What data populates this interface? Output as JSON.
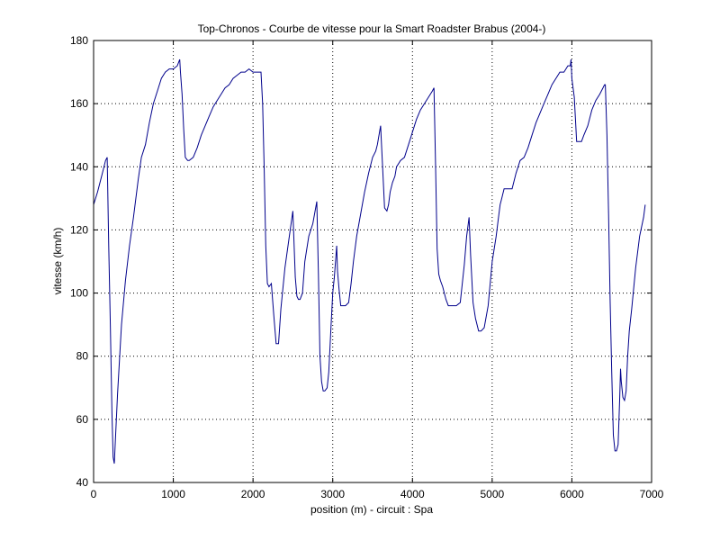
{
  "chart_data": {
    "type": "line",
    "title": "Top-Chronos - Courbe de vitesse pour la Smart Roadster Brabus (2004-)",
    "xlabel": "position (m) - circuit : Spa",
    "ylabel": "vitesse (km/h)",
    "xlim": [
      0,
      7000
    ],
    "ylim": [
      40,
      180
    ],
    "x_ticks": [
      0,
      1000,
      2000,
      3000,
      4000,
      5000,
      6000,
      7000
    ],
    "y_ticks": [
      40,
      60,
      80,
      100,
      120,
      140,
      160,
      180
    ],
    "grid": true,
    "line_color": "#00008b",
    "series": [
      {
        "x": [
          0,
          50,
          100,
          150,
          170,
          190,
          210,
          230,
          245,
          260,
          300,
          350,
          400,
          450,
          500,
          560,
          600,
          650,
          700,
          750,
          800,
          850,
          900,
          950,
          1000,
          1050,
          1080,
          1090,
          1110,
          1130,
          1150,
          1180,
          1200,
          1250,
          1300,
          1350,
          1400,
          1450,
          1500,
          1550,
          1600,
          1650,
          1700,
          1750,
          1800,
          1850,
          1900,
          1950,
          2000,
          2040,
          2060,
          2080,
          2100,
          2120,
          2140,
          2160,
          2180,
          2200,
          2230,
          2260,
          2290,
          2320,
          2350,
          2400,
          2450,
          2500,
          2530,
          2550,
          2570,
          2590,
          2620,
          2650,
          2700,
          2750,
          2800,
          2820,
          2840,
          2860,
          2880,
          2900,
          2930,
          2950,
          2980,
          3000,
          3020,
          3050,
          3060,
          3080,
          3100,
          3130,
          3160,
          3200,
          3230,
          3260,
          3300,
          3350,
          3400,
          3450,
          3500,
          3540,
          3560,
          3580,
          3600,
          3620,
          3650,
          3680,
          3700,
          3720,
          3750,
          3780,
          3800,
          3850,
          3900,
          3950,
          4000,
          4050,
          4100,
          4150,
          4200,
          4250,
          4270,
          4290,
          4310,
          4330,
          4350,
          4380,
          4420,
          4450,
          4500,
          4550,
          4600,
          4650,
          4680,
          4700,
          4710,
          4730,
          4760,
          4790,
          4830,
          4860,
          4900,
          4950,
          5000,
          5050,
          5080,
          5100,
          5120,
          5150,
          5200,
          5250,
          5300,
          5350,
          5400,
          5450,
          5500,
          5550,
          5600,
          5650,
          5700,
          5750,
          5800,
          5850,
          5900,
          5950,
          5980,
          5990,
          6000,
          6030,
          6060,
          6090,
          6120,
          6150,
          6200,
          6250,
          6300,
          6350,
          6390,
          6410,
          6420,
          6440,
          6460,
          6480,
          6500,
          6520,
          6540,
          6560,
          6580,
          6600,
          6610,
          6620,
          6640,
          6660,
          6680,
          6700,
          6720,
          6750,
          6800,
          6850,
          6900,
          6920
        ],
        "y": [
          128,
          132,
          137,
          142,
          143,
          115,
          90,
          62,
          48,
          46,
          68,
          90,
          104,
          115,
          124,
          136,
          143,
          147,
          154,
          160,
          164,
          168,
          170,
          171,
          171,
          172,
          174,
          170,
          163,
          152,
          143,
          142,
          142,
          143,
          146,
          150,
          153,
          156,
          159,
          161,
          163,
          165,
          166,
          168,
          169,
          170,
          170,
          171,
          170,
          170,
          170,
          170,
          170,
          160,
          140,
          115,
          103,
          102,
          103,
          93,
          84,
          84,
          95,
          108,
          117,
          126,
          105,
          99,
          98,
          98,
          100,
          110,
          118,
          122,
          129,
          106,
          80,
          72,
          69,
          69,
          70,
          75,
          90,
          100,
          105,
          115,
          107,
          101,
          96,
          96,
          96,
          97,
          103,
          110,
          118,
          125,
          132,
          138,
          143,
          145,
          147,
          150,
          153,
          143,
          127,
          126,
          128,
          132,
          135,
          137,
          140,
          142,
          143,
          147,
          151,
          155,
          158,
          160,
          162,
          164,
          165,
          140,
          114,
          106,
          104,
          102,
          98,
          96,
          96,
          96,
          97,
          109,
          118,
          122,
          124,
          112,
          97,
          92,
          88,
          88,
          89,
          96,
          110,
          118,
          124,
          128,
          130,
          133,
          133,
          133,
          138,
          142,
          143,
          146,
          150,
          154,
          157,
          160,
          163,
          166,
          168,
          170,
          170,
          172,
          172,
          174,
          168,
          162,
          148,
          148,
          148,
          150,
          153,
          158,
          161,
          163,
          165,
          166,
          166,
          150,
          125,
          98,
          75,
          55,
          50,
          50,
          52,
          67,
          76,
          72,
          67,
          66,
          69,
          80,
          88,
          95,
          108,
          118,
          124,
          128
        ]
      }
    ]
  }
}
